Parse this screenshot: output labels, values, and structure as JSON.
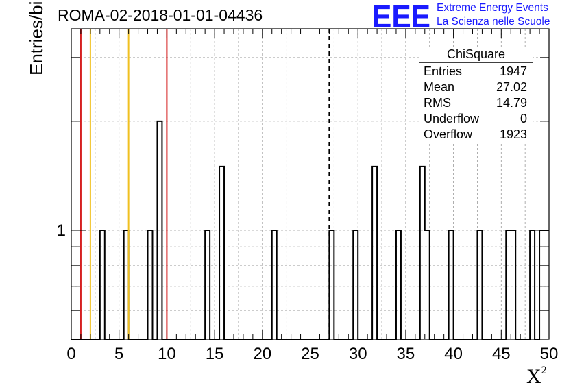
{
  "title": "ROMA-02-2018-01-01-04436",
  "logo": {
    "text": "EEE",
    "line1": "Extreme Energy Events",
    "line2": "La Scienza nelle Scuole",
    "color": "#1a1aff"
  },
  "stats": {
    "title": "ChiSquare",
    "rows": [
      {
        "label": "Entries",
        "value": "1947"
      },
      {
        "label": "Mean",
        "value": "27.02"
      },
      {
        "label": "RMS",
        "value": "14.79"
      },
      {
        "label": "Underflow",
        "value": "0"
      },
      {
        "label": "Overflow",
        "value": "1923"
      }
    ]
  },
  "chart_data": {
    "type": "histogram",
    "title": "ROMA-02-2018-01-01-04436",
    "xlabel": "X",
    "xlabel_sup": "2",
    "ylabel": "Entries/bin",
    "xlim": [
      0,
      50
    ],
    "ylim": [
      0.5,
      3.6
    ],
    "yscale": "log",
    "grid": true,
    "bin_width": 0.5,
    "x_ticks": [
      0,
      5,
      10,
      15,
      20,
      25,
      30,
      35,
      40,
      45,
      50
    ],
    "y_ticks": [
      1
    ],
    "bins": [
      {
        "x": 3.0,
        "count": 1
      },
      {
        "x": 5.5,
        "count": 1
      },
      {
        "x": 8.0,
        "count": 1
      },
      {
        "x": 9.0,
        "count": 2
      },
      {
        "x": 14.0,
        "count": 1
      },
      {
        "x": 15.5,
        "count": 1.5
      },
      {
        "x": 21.0,
        "count": 1
      },
      {
        "x": 27.0,
        "count": 1
      },
      {
        "x": 29.5,
        "count": 1
      },
      {
        "x": 31.5,
        "count": 1.5
      },
      {
        "x": 34.0,
        "count": 1
      },
      {
        "x": 36.5,
        "count": 1.5
      },
      {
        "x": 37.0,
        "count": 1
      },
      {
        "x": 39.5,
        "count": 1
      },
      {
        "x": 42.5,
        "count": 1
      },
      {
        "x": 45.5,
        "count": 1
      },
      {
        "x": 46.0,
        "count": 1
      },
      {
        "x": 48.0,
        "count": 1
      },
      {
        "x": 49.0,
        "count": 1
      },
      {
        "x": 49.5,
        "count": 1
      }
    ],
    "vlines": [
      {
        "x": 1,
        "color": "#d62020",
        "style": "solid"
      },
      {
        "x": 2,
        "color": "#f0c020",
        "style": "solid"
      },
      {
        "x": 6,
        "color": "#f0c020",
        "style": "solid"
      },
      {
        "x": 10,
        "color": "#d62020",
        "style": "solid"
      },
      {
        "x": 27,
        "color": "#000000",
        "style": "dashed"
      }
    ]
  }
}
